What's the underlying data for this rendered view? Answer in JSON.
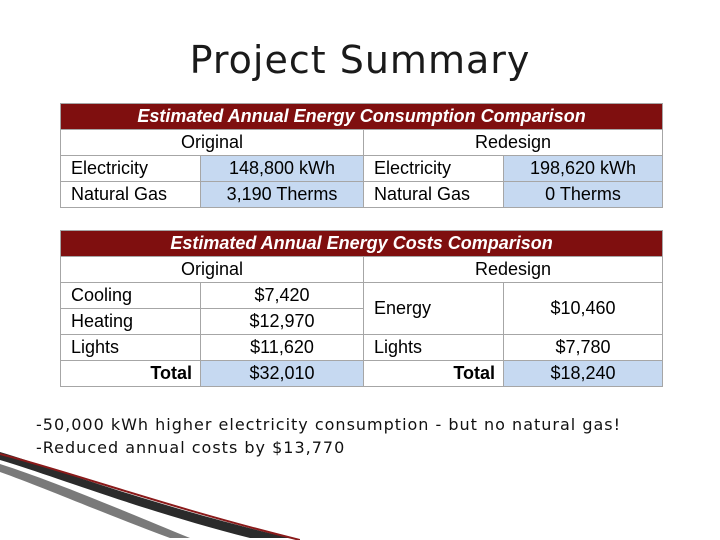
{
  "title": "Project Summary",
  "consumption": {
    "heading": "Estimated Annual Energy Consumption Comparison",
    "original_label": "Original",
    "redesign_label": "Redesign",
    "rows": [
      {
        "o_label": "Electricity",
        "o_value": "148,800 kWh",
        "r_label": "Electricity",
        "r_value": "198,620 kWh"
      },
      {
        "o_label": "Natural Gas",
        "o_value": "3,190 Therms",
        "r_label": "Natural Gas",
        "r_value": "0 Therms"
      }
    ]
  },
  "costs": {
    "heading": "Estimated Annual Energy Costs Comparison",
    "original_label": "Original",
    "redesign_label": "Redesign",
    "original_rows": [
      {
        "label": "Cooling",
        "value": "$7,420"
      },
      {
        "label": "Heating",
        "value": "$12,970"
      },
      {
        "label": "Lights",
        "value": "$11,620"
      }
    ],
    "redesign_rows": [
      {
        "label": "Energy",
        "value": "$10,460"
      },
      {
        "label": "Lights",
        "value": "$7,780"
      }
    ],
    "total_label": "Total",
    "original_total": "$32,010",
    "redesign_total": "$18,240"
  },
  "notes": [
    "-50,000 kWh higher electricity consumption - but no natural gas!",
    "-Reduced annual costs by $13,770"
  ],
  "colors": {
    "header_bg": "#7f0f0f",
    "value_bg": "#c6d9f1"
  }
}
